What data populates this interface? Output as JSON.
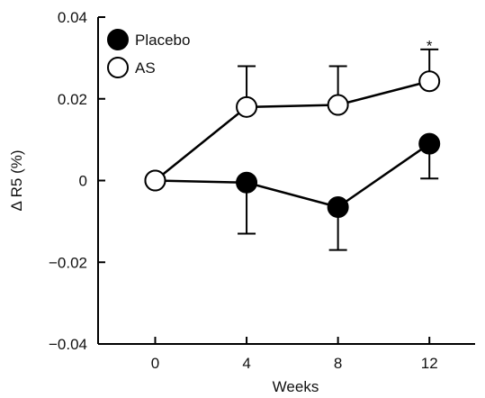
{
  "chart_data": {
    "type": "line",
    "x": [
      0,
      4,
      8,
      12
    ],
    "xlabel": "Weeks",
    "ylabel": "Δ R5 (%)",
    "xlim": [
      -2.5,
      14
    ],
    "ylim": [
      -0.04,
      0.04
    ],
    "x_ticks": [
      0,
      4,
      8,
      12
    ],
    "x_tick_labels": [
      "0",
      "4",
      "8",
      "12"
    ],
    "y_ticks": [
      -0.04,
      -0.02,
      0,
      0.02,
      0.04
    ],
    "y_tick_labels": [
      "−0.04",
      "−0.02",
      "0",
      "0.02",
      "0.04"
    ],
    "grid": false,
    "legend_position": "top-left",
    "series": [
      {
        "name": "Placebo",
        "marker": "filled-circle",
        "color": "#000000",
        "values": [
          0,
          -0.0005,
          -0.0065,
          0.009
        ],
        "error": [
          null,
          0.0125,
          0.0105,
          0.0085
        ],
        "error_direction": "down"
      },
      {
        "name": "AS",
        "marker": "open-circle",
        "color": "#000000",
        "values": [
          0,
          0.018,
          0.0185,
          0.0243
        ],
        "error": [
          null,
          0.01,
          0.0095,
          0.0078
        ],
        "error_direction": "up"
      }
    ],
    "annotations": [
      {
        "text": "*",
        "x": 12,
        "y": 0.0335
      }
    ]
  }
}
